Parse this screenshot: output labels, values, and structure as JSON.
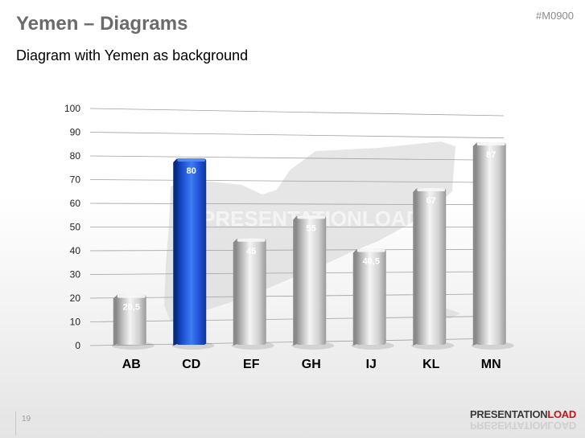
{
  "header": {
    "title": "Yemen – Diagrams",
    "subtitle": "Diagram with Yemen as background",
    "code": "#M0900"
  },
  "watermark": {
    "text": "PRESENTATIONLOAD"
  },
  "footer": {
    "page_number": "19",
    "brand_part1": "PRESENTATION",
    "brand_part2": "LOAD",
    "brand_part2_color": "#c4151c"
  },
  "colors": {
    "highlight_bar": "#1f57d6",
    "default_bar": "#c8c8c8",
    "gridline": "#a0a0a0"
  },
  "chart_data": {
    "type": "bar",
    "categories": [
      "AB",
      "CD",
      "EF",
      "GH",
      "IJ",
      "KL",
      "MN"
    ],
    "values": [
      20.5,
      80,
      45,
      55,
      40.5,
      67,
      87
    ],
    "value_labels": [
      "20,5",
      "80",
      "45",
      "55",
      "40,5",
      "67",
      "87"
    ],
    "highlight_index": 1,
    "ylim": [
      0,
      100
    ],
    "yticks": [
      "0",
      "10",
      "20",
      "30",
      "40",
      "50",
      "60",
      "70",
      "80",
      "90",
      "100"
    ],
    "grid": true,
    "legend": "none",
    "style": "3d-cylinder-bars"
  }
}
